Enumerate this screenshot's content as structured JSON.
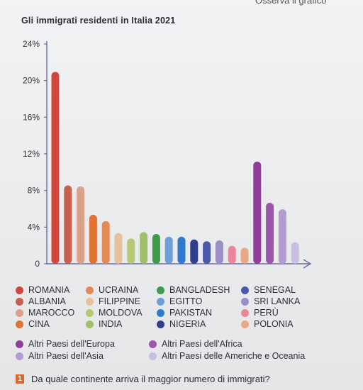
{
  "top_text": "Osserva il grafico",
  "question": {
    "number": "1",
    "text": "Da quale continente arriva il maggior numero di immigrati?"
  },
  "chart_data": {
    "type": "bar",
    "title": "Gli immigrati residenti in Italia 2021",
    "y_ticks": [
      "0",
      "4%",
      "8%",
      "12%",
      "16%",
      "20%",
      "24%"
    ],
    "ylim": [
      0,
      24
    ],
    "grid": false,
    "categories": [
      "ROMANIA",
      "ALBANIA",
      "MAROCCO",
      "CINA",
      "UCRAINA",
      "FILIPPINE",
      "MOLDOVA",
      "INDIA",
      "BANGLADESH",
      "EGITTO",
      "PAKISTAN",
      "NIGERIA",
      "SENEGAL",
      "SRI LANKA",
      "PERÙ",
      "POLONIA",
      "Altri Paesi dell'Europa",
      "Altri Paesi dell'Africa",
      "Altri Paesi dell'Asia",
      "Altri Paesi delle Americhe e Oceania"
    ],
    "values": [
      20.8,
      8.4,
      8.3,
      5.2,
      4.5,
      3.2,
      2.6,
      3.3,
      3.1,
      2.8,
      2.8,
      2.5,
      2.3,
      2.4,
      1.8,
      1.6,
      11.0,
      6.5,
      5.8,
      2.2
    ],
    "colors": [
      "#d2473c",
      "#c65f4d",
      "#dca18a",
      "#e07234",
      "#e38a55",
      "#e6c29a",
      "#b6c872",
      "#9fbf6a",
      "#3f9a4c",
      "#6a9fd8",
      "#2f78cc",
      "#2f3f8c",
      "#4a5aa8",
      "#9d8fc6",
      "#e9869a",
      "#e6a981",
      "#8f3d98",
      "#9a56a8",
      "#b39cd0",
      "#c9bfe0"
    ]
  },
  "legend": {
    "countries": [
      {
        "label": "ROMANIA",
        "color": "#d2473c"
      },
      {
        "label": "ALBANIA",
        "color": "#c65f4d"
      },
      {
        "label": "MAROCCO",
        "color": "#dca18a"
      },
      {
        "label": "CINA",
        "color": "#e07234"
      },
      {
        "label": "UCRAINA",
        "color": "#e38a55"
      },
      {
        "label": "FILIPPINE",
        "color": "#e6c29a"
      },
      {
        "label": "MOLDOVA",
        "color": "#b6c872"
      },
      {
        "label": "INDIA",
        "color": "#9fbf6a"
      },
      {
        "label": "BANGLADESH",
        "color": "#3f9a4c"
      },
      {
        "label": "EGITTO",
        "color": "#6a9fd8"
      },
      {
        "label": "PAKISTAN",
        "color": "#2f78cc"
      },
      {
        "label": "NIGERIA",
        "color": "#2f3f8c"
      },
      {
        "label": "SENEGAL",
        "color": "#4a5aa8"
      },
      {
        "label": "SRI LANKA",
        "color": "#9d8fc6"
      },
      {
        "label": "PERÙ",
        "color": "#e9869a"
      },
      {
        "label": "POLONIA",
        "color": "#e6a981"
      }
    ],
    "others": [
      {
        "label": "Altri Paesi dell'Europa",
        "color": "#8f3d98"
      },
      {
        "label": "Altri Paesi dell'Africa",
        "color": "#9a56a8"
      },
      {
        "label": "Altri Paesi dell'Asia",
        "color": "#b39cd0"
      },
      {
        "label": "Altri Paesi delle Americhe e Oceania",
        "color": "#c9bfe0"
      }
    ]
  }
}
